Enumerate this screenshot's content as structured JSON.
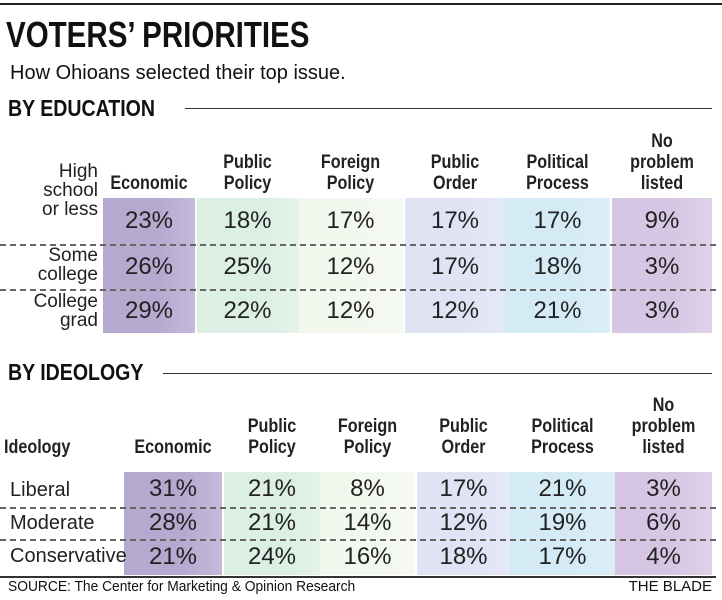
{
  "title": "VOTERS’ PRIORITIES",
  "subtitle": "How Ohioans selected their top issue.",
  "source": "SOURCE: The Center for Marketing & Opinion Research",
  "credit": "THE BLADE",
  "colors": {
    "Economic": "#b6a9d0",
    "Public Policy": "#dcefe4",
    "Foreign Policy": "#f3f8ef",
    "Public Order": "#dfe3f4",
    "Political Process": "#d4ebf6",
    "No problem listed": "#d6c6e3"
  },
  "chart_data": [
    {
      "type": "table",
      "title": "BY EDUCATION",
      "row_header": "",
      "columns": [
        "Economic",
        "Public\nPolicy",
        "Foreign\nPolicy",
        "Public\nOrder",
        "Political\nProcess",
        "No\nproblem\nlisted"
      ],
      "rows": [
        {
          "label": "High\nschool\nor less",
          "values": [
            "23%",
            "18%",
            "17%",
            "17%",
            "17%",
            "9%"
          ]
        },
        {
          "label": "Some\ncollege",
          "values": [
            "26%",
            "25%",
            "12%",
            "17%",
            "18%",
            "3%"
          ]
        },
        {
          "label": "College\ngrad",
          "values": [
            "29%",
            "22%",
            "12%",
            "12%",
            "21%",
            "3%"
          ]
        }
      ]
    },
    {
      "type": "table",
      "title": "BY IDEOLOGY",
      "row_header": "Ideology",
      "columns": [
        "Economic",
        "Public\nPolicy",
        "Foreign\nPolicy",
        "Public\nOrder",
        "Political\nProcess",
        "No\nproblem\nlisted"
      ],
      "rows": [
        {
          "label": "Liberal",
          "values": [
            "31%",
            "21%",
            "8%",
            "17%",
            "21%",
            "3%"
          ]
        },
        {
          "label": "Moderate",
          "values": [
            "28%",
            "21%",
            "14%",
            "12%",
            "19%",
            "6%"
          ]
        },
        {
          "label": "Conservative",
          "values": [
            "21%",
            "24%",
            "16%",
            "18%",
            "17%",
            "4%"
          ]
        }
      ]
    }
  ]
}
